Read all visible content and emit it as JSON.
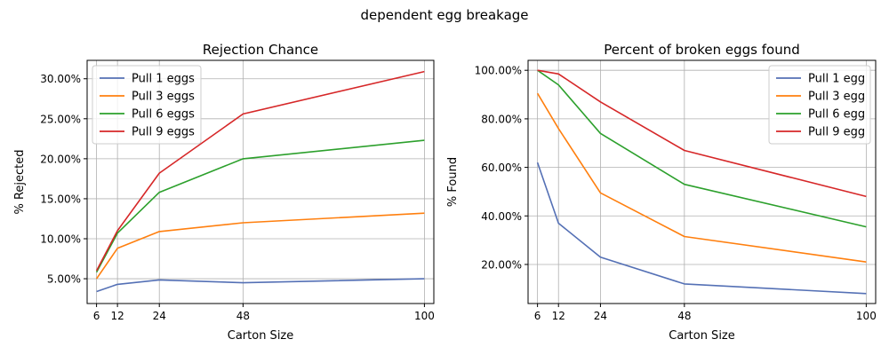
{
  "suptitle": "dependent egg breakage",
  "colors": [
    "#5470b5",
    "#ff7f0e",
    "#2ca02c",
    "#d62728"
  ],
  "chart_data": [
    {
      "type": "line",
      "title": "Rejection Chance",
      "xlabel": "Carton Size",
      "ylabel": "% Rejected",
      "x": [
        6,
        12,
        24,
        48,
        100
      ],
      "xticks": [
        "6",
        "12",
        "24",
        "48",
        "100"
      ],
      "yticks": [
        "5.00%",
        "10.00%",
        "15.00%",
        "20.00%",
        "25.00%",
        "30.00%"
      ],
      "ytick_values": [
        5,
        10,
        15,
        20,
        25,
        30
      ],
      "xlim": [
        3.3,
        102.7
      ],
      "ylim": [
        1.9,
        32.3
      ],
      "grid": true,
      "legend_position": "top-left",
      "series": [
        {
          "name": "Pull 1 eggs",
          "values": [
            3.4,
            4.3,
            4.85,
            4.5,
            5.0
          ]
        },
        {
          "name": "Pull 3 eggs",
          "values": [
            5.0,
            8.8,
            10.9,
            12.0,
            13.2
          ]
        },
        {
          "name": "Pull 6 eggs",
          "values": [
            5.8,
            10.7,
            15.8,
            20.0,
            22.3
          ]
        },
        {
          "name": "Pull 9 eggs",
          "values": [
            6.0,
            11.0,
            18.2,
            25.6,
            30.9
          ]
        }
      ]
    },
    {
      "type": "line",
      "title": "Percent of broken eggs found",
      "xlabel": "Carton Size",
      "ylabel": "% Found",
      "x": [
        6,
        12,
        24,
        48,
        100
      ],
      "xticks": [
        "6",
        "12",
        "24",
        "48",
        "100"
      ],
      "yticks": [
        "20.00%",
        "40.00%",
        "60.00%",
        "80.00%",
        "100.00%"
      ],
      "ytick_values": [
        20,
        40,
        60,
        80,
        100
      ],
      "xlim": [
        3.3,
        102.7
      ],
      "ylim": [
        3.9,
        104.1
      ],
      "grid": true,
      "legend_position": "top-right",
      "series": [
        {
          "name": "Pull 1 egg",
          "values": [
            62.0,
            37.0,
            23.0,
            12.0,
            8.0
          ]
        },
        {
          "name": "Pull 3 egg",
          "values": [
            90.5,
            76.0,
            49.5,
            31.5,
            21.0
          ]
        },
        {
          "name": "Pull 6 egg",
          "values": [
            100.0,
            94.0,
            74.0,
            53.0,
            35.5
          ]
        },
        {
          "name": "Pull 9 egg",
          "values": [
            100.0,
            98.5,
            87.0,
            67.0,
            48.0
          ]
        }
      ]
    }
  ]
}
